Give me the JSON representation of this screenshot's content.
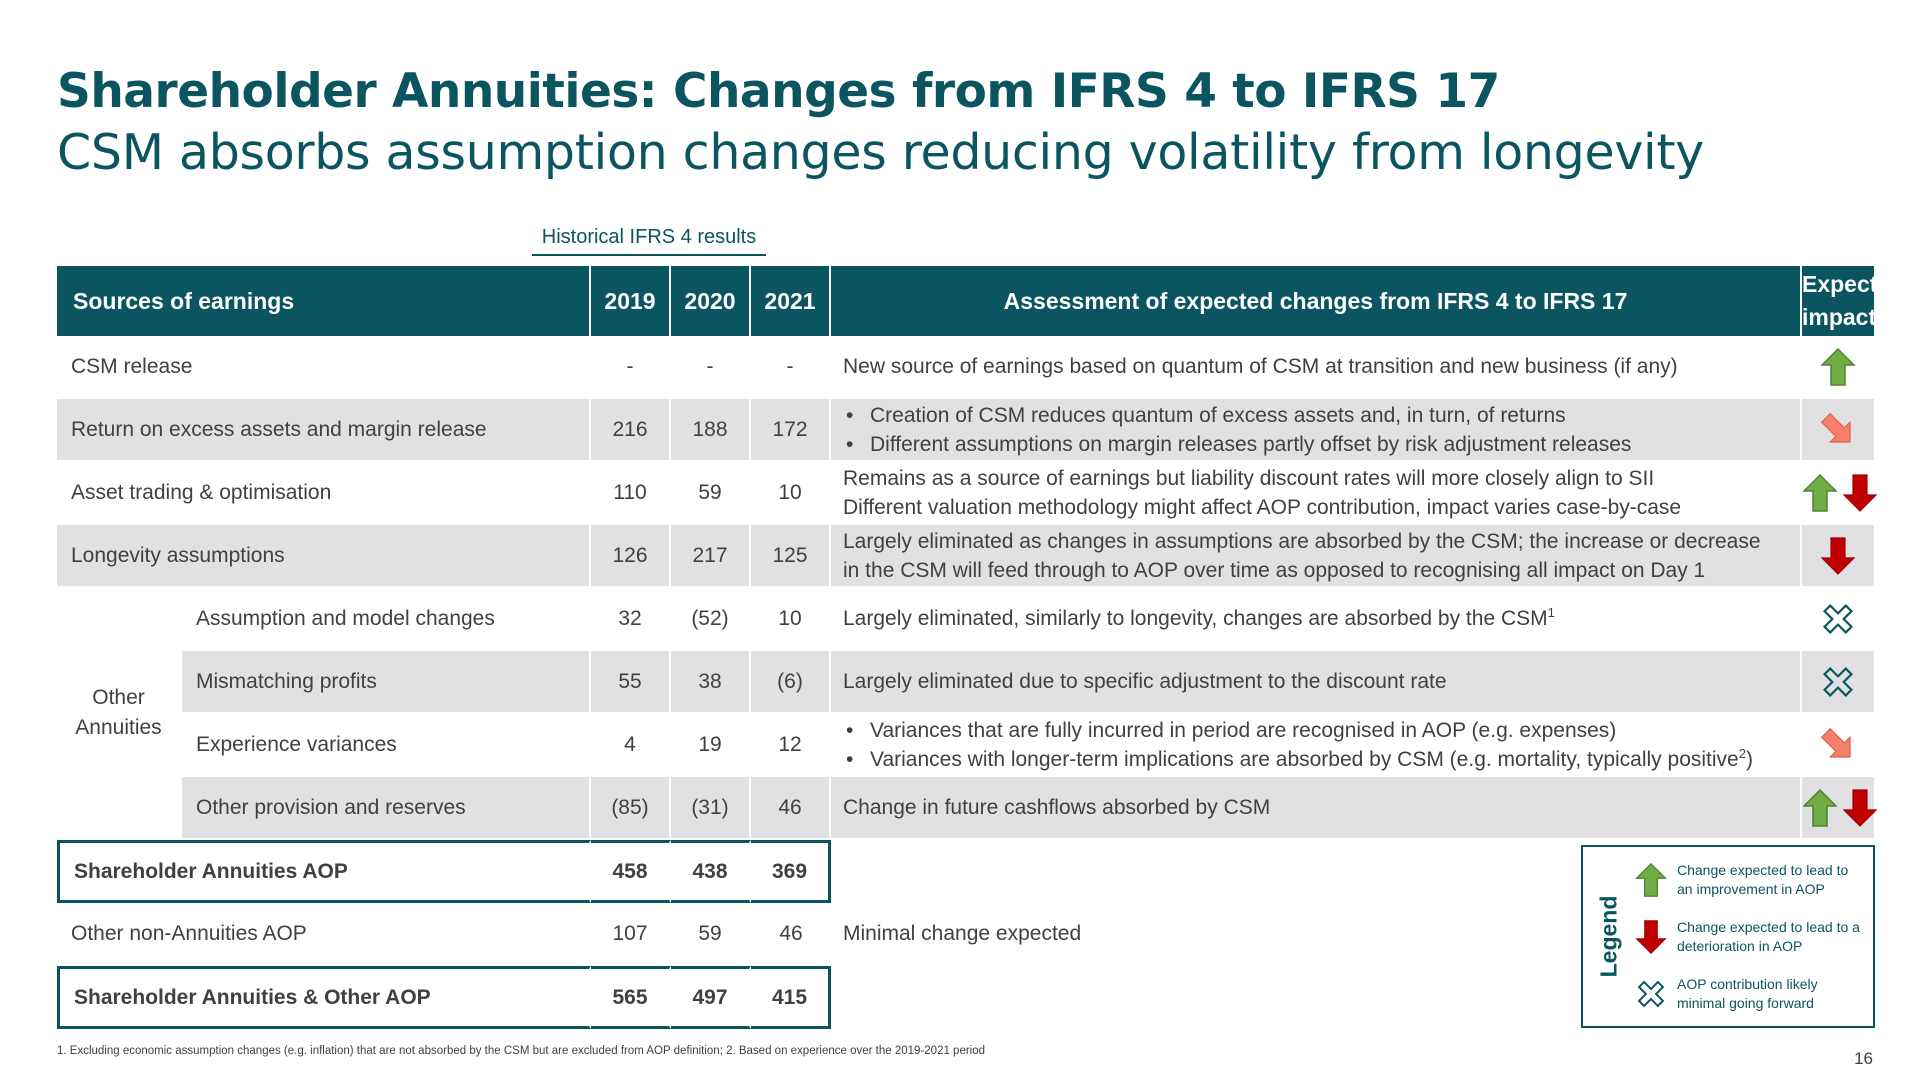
{
  "title": "Shareholder Annuities:  Changes from IFRS 4 to IFRS 17",
  "subtitle": "CSM absorbs assumption changes reducing volatility from longevity",
  "historical_label": "Historical IFRS 4 results",
  "table": {
    "headers": {
      "sources": "Sources of earnings",
      "y2019": "2019",
      "y2020": "2020",
      "y2021": "2021",
      "assessment": "Assessment of expected changes from IFRS 4 to IFRS 17",
      "impact_line1": "Expected",
      "impact_line2": "impact"
    },
    "other_annuities_label_line1": "Other",
    "other_annuities_label_line2": "Annuities",
    "rows": [
      {
        "label": "CSM release",
        "v2019": "-",
        "v2020": "-",
        "v2021": "-",
        "assessment": [
          "New source of earnings based on quantum of CSM at transition and new business (if any)"
        ],
        "impact": [
          "up-arrow-icon"
        ]
      },
      {
        "label": "Return on excess assets and margin release",
        "v2019": "216",
        "v2020": "188",
        "v2021": "172",
        "assessment": [
          "Creation of CSM reduces quantum of excess assets and, in turn, of returns",
          "Different assumptions on margin releases partly offset by risk adjustment releases"
        ],
        "impact": [
          "diagonal-down-arrow-icon"
        ]
      },
      {
        "label": "Asset trading & optimisation",
        "v2019": "110",
        "v2020": "59",
        "v2021": "10",
        "assessment": [
          "Remains as a source of earnings but liability discount rates will more closely align to SII",
          "Different valuation methodology might affect AOP contribution, impact varies case-by-case"
        ],
        "impact": [
          "up-arrow-icon",
          "down-arrow-icon"
        ]
      },
      {
        "label": "Longevity assumptions",
        "v2019": "126",
        "v2020": "217",
        "v2021": "125",
        "assessment": [
          "Largely eliminated as changes in assumptions are absorbed by the CSM; the increase or decrease",
          "in the CSM will feed through to AOP over time as opposed to recognising all impact on Day 1"
        ],
        "impact": [
          "down-arrow-icon"
        ]
      },
      {
        "label": "Assumption and model changes",
        "v2019": "32",
        "v2020": "(52)",
        "v2021": "10",
        "assessment": [
          "Largely eliminated, similarly to longevity, changes are absorbed by the CSM"
        ],
        "footnote_ref": "1",
        "impact": [
          "cross-outline-icon"
        ]
      },
      {
        "label": "Mismatching profits",
        "v2019": "55",
        "v2020": "38",
        "v2021": "(6)",
        "assessment": [
          "Largely eliminated due to specific adjustment to the discount rate"
        ],
        "impact": [
          "cross-outline-icon"
        ]
      },
      {
        "label": "Experience variances",
        "v2019": "4",
        "v2020": "19",
        "v2021": "12",
        "assessment": [
          "Variances that are fully incurred in period are recognised in AOP (e.g. expenses)",
          "Variances with longer-term implications are absorbed by CSM (e.g. mortality, typically positive"
        ],
        "footnote_ref": "2",
        "footnote_suffix": ")",
        "impact": [
          "diagonal-down-arrow-icon"
        ]
      },
      {
        "label": "Other provision and reserves",
        "v2019": "(85)",
        "v2020": "(31)",
        "v2021": "46",
        "assessment": [
          "Change in future cashflows absorbed by CSM"
        ],
        "impact": [
          "up-arrow-icon",
          "down-arrow-icon"
        ]
      },
      {
        "label": "Shareholder Annuities AOP",
        "v2019": "458",
        "v2020": "438",
        "v2021": "369"
      },
      {
        "label": "Other non-Annuities AOP",
        "v2019": "107",
        "v2020": "59",
        "v2021": "46",
        "assessment": [
          "Minimal change expected"
        ]
      },
      {
        "label": "Shareholder Annuities & Other AOP",
        "v2019": "565",
        "v2020": "497",
        "v2021": "415"
      }
    ]
  },
  "legend": {
    "title": "Legend",
    "items": [
      {
        "icon": "up-arrow-icon",
        "text": "Change expected to lead to an improvement in AOP"
      },
      {
        "icon": "down-arrow-icon",
        "text": "Change expected to lead to a  deterioration in AOP"
      },
      {
        "icon": "cross-outline-icon",
        "text": "AOP contribution likely minimal going forward"
      }
    ]
  },
  "footnote": "1. Excluding economic assumption changes (e.g. inflation) that are not absorbed by the CSM but are excluded from AOP definition;  2. Based on experience over the 2019-2021 period",
  "page_number": "16",
  "colors": {
    "brand": "#0b5560",
    "row_shade": "#e1e1e3",
    "up_arrow": "#70ad47",
    "down_arrow": "#c00000",
    "diagonal_arrow": "#f4806b"
  }
}
